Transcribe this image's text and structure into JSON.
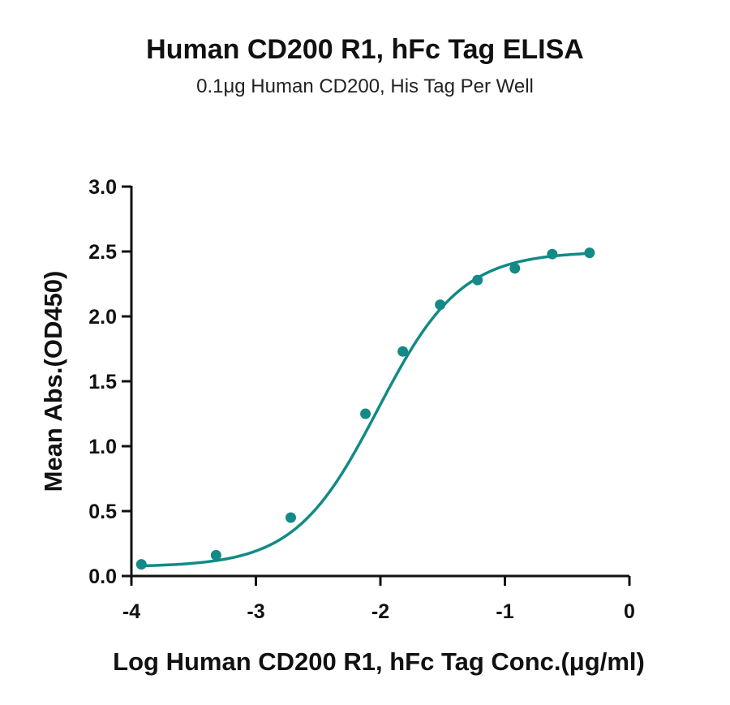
{
  "chart_data": {
    "type": "scatter",
    "title": "Human CD200 R1, hFc Tag ELISA",
    "subtitle": "0.1μg Human CD200, His Tag Per Well",
    "xlabel": "Log Human CD200 R1, hFc Tag Conc.(μg/ml)",
    "ylabel": "Mean Abs.(OD450)",
    "xlim": [
      -4,
      0
    ],
    "ylim": [
      0,
      3.0
    ],
    "x_ticks": [
      "-4",
      "-3",
      "-2",
      "-1",
      "0"
    ],
    "y_ticks": [
      "0.0",
      "0.5",
      "1.0",
      "1.5",
      "2.0",
      "2.5",
      "3.0"
    ],
    "grid": false,
    "series": [
      {
        "x": [
          -3.92,
          -3.32,
          -2.72,
          -2.12,
          -1.82,
          -1.52,
          -1.22,
          -0.92,
          -0.62,
          -0.32
        ],
        "y": [
          0.09,
          0.16,
          0.45,
          1.25,
          1.73,
          2.09,
          2.28,
          2.37,
          2.48,
          2.49
        ],
        "fit": "four-parameter logistic",
        "color": "#138a86"
      }
    ]
  }
}
